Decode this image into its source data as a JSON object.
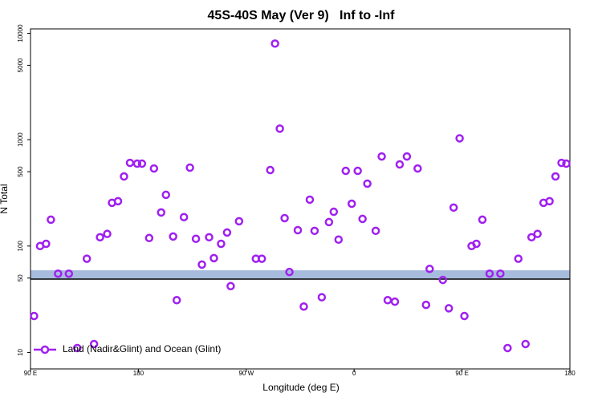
{
  "chart_data": {
    "type": "scatter",
    "title": "45S-40S May (Ver 9)   Inf to -Inf",
    "x_label": "Longitude (deg E)",
    "y_label": "N Total",
    "log_y": true,
    "legend": "bottom-left",
    "xlim": [
      90,
      540
    ],
    "ylim": [
      7,
      11000
    ],
    "xticks": [
      {
        "value": 90,
        "label": "90 E"
      },
      {
        "value": 180,
        "label": "180"
      },
      {
        "value": 270,
        "label": "90 W"
      },
      {
        "value": 360,
        "label": "0"
      },
      {
        "value": 450,
        "label": "90 E"
      },
      {
        "value": 540,
        "label": "180"
      }
    ],
    "yticks": [
      10,
      50,
      100,
      500,
      1000,
      5000,
      10000
    ],
    "series": [
      {
        "name": "Land (Nadir&Glint) and Ocean (Glint)",
        "color": "#a020f0",
        "x": [
          93,
          98,
          103,
          107,
          113,
          122,
          129,
          137,
          143,
          148,
          154,
          158,
          163,
          168,
          173,
          179,
          183,
          189,
          193,
          199,
          203,
          209,
          212,
          218,
          223,
          228,
          233,
          239,
          243,
          249,
          254,
          257,
          264,
          278,
          283,
          290,
          294,
          298,
          302,
          306,
          313,
          318,
          323,
          327,
          333,
          339,
          343,
          347,
          353,
          358,
          363,
          367,
          371,
          378,
          383,
          388,
          394,
          398,
          404,
          413,
          420,
          423,
          434,
          439,
          443,
          448,
          452,
          458,
          462,
          467,
          473,
          482,
          488,
          497,
          503,
          508,
          513,
          518,
          523,
          528,
          533,
          537
        ],
        "values": [
          22,
          100,
          105,
          177,
          55,
          55,
          11,
          76,
          12,
          121,
          130,
          255,
          264,
          451,
          605,
          595,
          595,
          119,
          536,
          207,
          303,
          123,
          31,
          187,
          546,
          117,
          67,
          121,
          77,
          105,
          134,
          42,
          171,
          76,
          76,
          518,
          8000,
          1270,
          183,
          57,
          141,
          27,
          273,
          139,
          33,
          168,
          210,
          115,
          509,
          250,
          509,
          180,
          386,
          139,
          695,
          31,
          30,
          585,
          695,
          536,
          28,
          61,
          48,
          26,
          230,
          1030,
          22,
          100,
          105,
          177,
          55,
          55,
          11,
          76,
          12,
          121,
          130,
          255,
          264,
          451,
          605,
          595
        ]
      }
    ]
  }
}
